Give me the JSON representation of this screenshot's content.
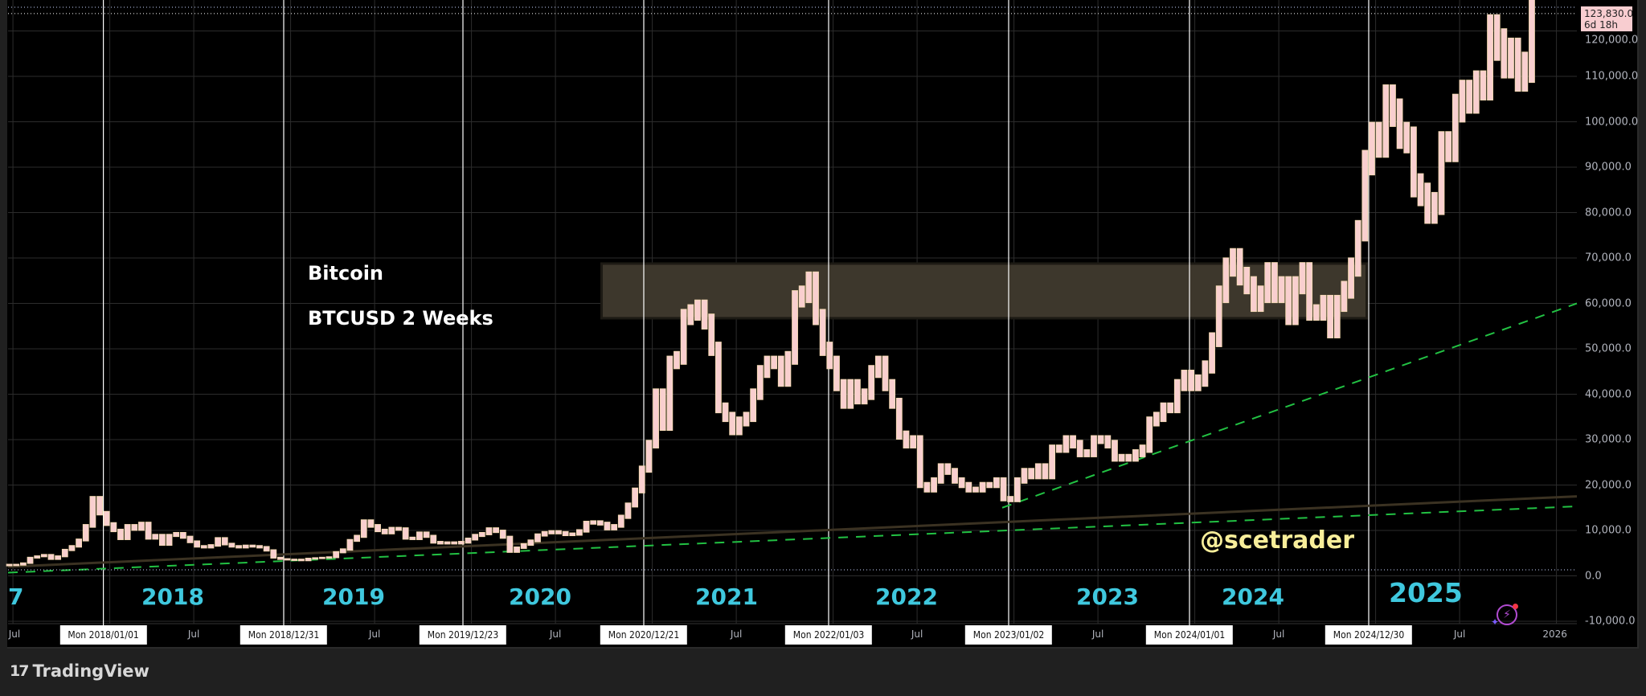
{
  "chart_data": {
    "type": "bar",
    "symbol_title": "Bitcoin",
    "subtitle": "BTCUSD 2 Weeks",
    "watermark_handle": "@scetrader",
    "last_price": "123,830.0",
    "countdown": "6d 18h",
    "y_unit": "USD",
    "ylim": [
      -10000,
      125000
    ],
    "y_ticks": [
      "120,000.0",
      "110,000.0",
      "100,000.0",
      "90,000.0",
      "80,000.0",
      "70,000.0",
      "60,000.0",
      "50,000.0",
      "40,000.0",
      "30,000.0",
      "20,000.0",
      "10,000.0",
      "0.0",
      "-10,000.0"
    ],
    "x_tick_labels": [
      "Jul",
      "Jul",
      "Jul",
      "Jul",
      "Jul",
      "Jul",
      "Jul",
      "Jul",
      "Jul",
      "2026"
    ],
    "period_markers": [
      "Mon 2018/01/01",
      "Mon 2018/12/31",
      "Mon 2019/12/23",
      "Mon 2020/12/21",
      "Mon 2022/01/03",
      "Mon 2023/01/02",
      "Mon 2024/01/01",
      "Mon 2024/12/30"
    ],
    "year_labels": [
      "7",
      "2018",
      "2019",
      "2020",
      "2021",
      "2022",
      "2023",
      "2024",
      "2025"
    ],
    "closes_k": [
      2.5,
      2.4,
      2.8,
      4.0,
      4.3,
      4.6,
      3.7,
      4.3,
      5.7,
      6.5,
      7.9,
      11.0,
      17.0,
      13.8,
      11.4,
      10.0,
      8.2,
      11.0,
      10.3,
      11.5,
      8.3,
      8.9,
      6.9,
      8.9,
      9.3,
      8.5,
      7.5,
      6.5,
      6.3,
      6.7,
      8.2,
      7.0,
      6.5,
      6.3,
      6.6,
      6.5,
      6.3,
      5.6,
      4.0,
      3.7,
      3.6,
      3.6,
      3.4,
      3.8,
      3.9,
      4.0,
      4.1,
      5.2,
      5.8,
      7.8,
      8.7,
      12.0,
      11.0,
      10.0,
      9.5,
      10.4,
      10.3,
      8.3,
      8.2,
      9.4,
      8.7,
      7.4,
      7.2,
      7.3,
      7.2,
      7.4,
      8.1,
      8.9,
      9.3,
      10.3,
      9.8,
      8.5,
      5.3,
      6.2,
      6.9,
      7.7,
      9.0,
      9.5,
      9.7,
      9.5,
      9.1,
      9.2,
      9.9,
      11.7,
      11.8,
      11.5,
      10.4,
      11.0,
      13.0,
      15.6,
      18.8,
      23.5,
      29.0,
      40,
      33,
      47,
      48,
      57,
      58,
      59,
      56,
      50,
      37,
      35,
      32,
      34,
      35,
      40,
      45,
      47,
      47,
      43,
      48,
      61,
      62,
      65,
      57,
      50,
      47,
      42,
      38,
      42,
      39,
      40,
      45,
      47,
      42,
      38,
      31,
      29,
      30,
      20,
      19,
      21,
      24,
      23,
      21,
      20,
      19,
      19,
      20,
      20,
      21,
      17,
      16.8,
      21,
      23,
      22,
      24,
      22,
      28,
      28,
      30,
      29,
      27,
      27,
      30,
      30,
      29,
      26,
      26,
      26,
      27,
      28,
      34,
      35,
      37,
      37,
      42,
      44,
      42,
      43,
      46,
      52,
      62,
      68,
      70,
      66,
      64,
      60,
      62,
      67,
      62,
      64,
      57,
      64,
      67,
      58,
      58,
      60,
      54,
      60,
      63,
      68,
      76,
      91,
      97,
      95,
      105,
      102,
      97,
      96,
      86,
      84,
      80,
      82,
      95,
      94,
      103,
      106,
      105,
      108,
      108,
      120,
      117,
      113,
      115,
      110,
      112,
      123.8
    ],
    "zone": {
      "low": 57000,
      "high": 68500,
      "from": "2020-06",
      "to": "2024-12"
    },
    "trendlines": [
      {
        "style": "dashed",
        "color": "#22c143",
        "from_price": 700,
        "to_price": 15300
      },
      {
        "style": "dashed",
        "color": "#22c143",
        "from_price": 15000,
        "to_price": 60000
      },
      {
        "style": "solid",
        "color": "#3b3222",
        "from_price": 2000,
        "to_price": 17500
      }
    ],
    "colors": {
      "bar_fill": "#f9cfcf",
      "bar_border": "#f5dcb0",
      "year_label": "#3fc8de",
      "handle": "#f8ee9a",
      "grid": "#2c2c2c",
      "period_line": "#ffffff"
    }
  },
  "footer": {
    "brand": "TradingView",
    "logo_glyph": "17"
  }
}
